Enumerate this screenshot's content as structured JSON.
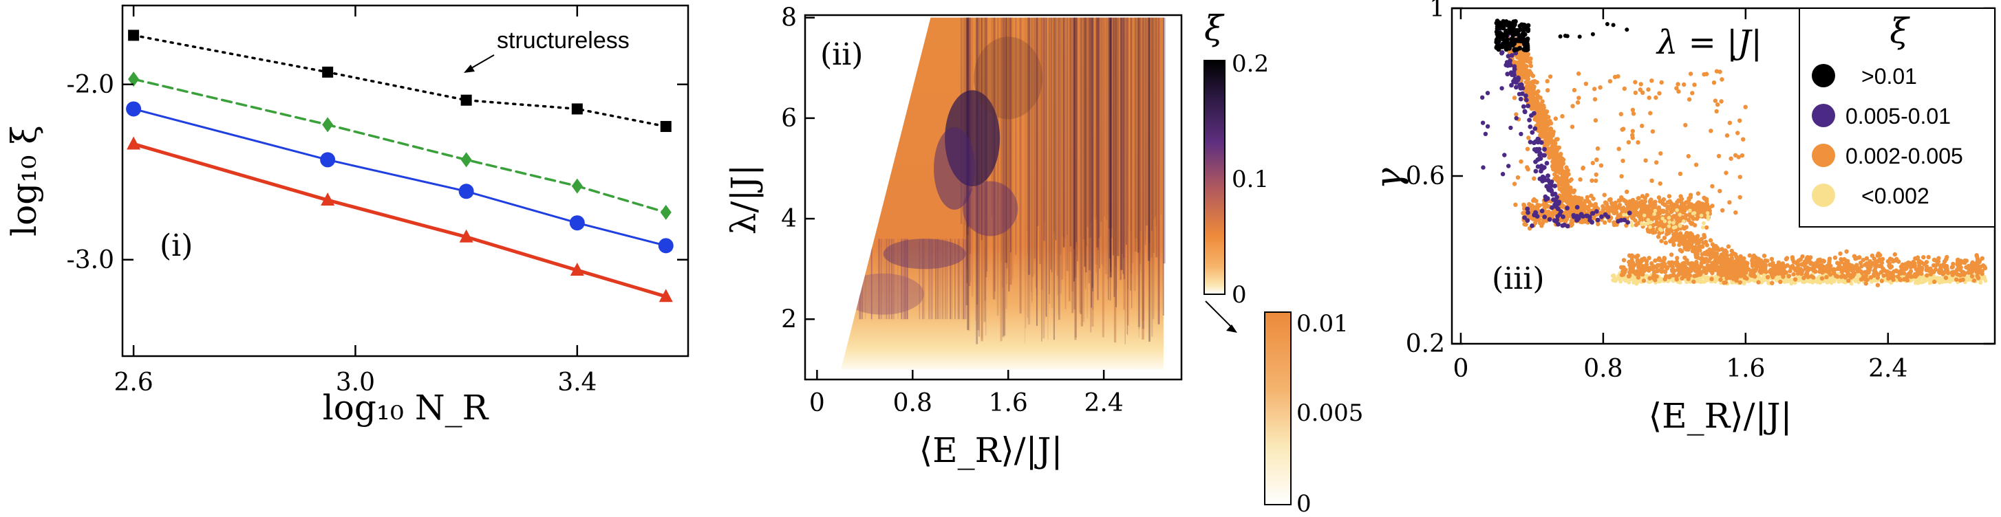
{
  "chart_data": [
    {
      "panel": "(i)",
      "type": "line",
      "xlabel": "log₁₀ N_R",
      "ylabel": "log₁₀ ξ",
      "xlim": [
        2.58,
        3.6
      ],
      "ylim": [
        -3.55,
        -1.55
      ],
      "xticks": [
        2.6,
        3.0,
        3.4
      ],
      "yticks": [
        -2.0,
        -3.0
      ],
      "xtick_labels": [
        "2.6",
        "3.0",
        "3.4"
      ],
      "ytick_labels": [
        "-2.0",
        "-3.0"
      ],
      "annotation": "structureless",
      "series": [
        {
          "color": "#000000",
          "style": "dotted",
          "marker": "square",
          "x": [
            2.6,
            2.95,
            3.2,
            3.4,
            3.56
          ],
          "y": [
            -1.72,
            -1.93,
            -2.09,
            -2.14,
            -2.24
          ]
        },
        {
          "color": "#3aa03a",
          "style": "dashed",
          "marker": "diamond",
          "x": [
            2.6,
            2.95,
            3.2,
            3.4,
            3.56
          ],
          "y": [
            -1.97,
            -2.23,
            -2.43,
            -2.58,
            -2.73
          ]
        },
        {
          "color": "#1f3fe0",
          "style": "solid",
          "marker": "circle",
          "x": [
            2.6,
            2.95,
            3.2,
            3.4,
            3.56
          ],
          "y": [
            -2.14,
            -2.43,
            -2.61,
            -2.79,
            -2.92
          ]
        },
        {
          "color": "#e23a1f",
          "style": "solid-thick",
          "marker": "triangle",
          "x": [
            2.6,
            2.95,
            3.2,
            3.4,
            3.56
          ],
          "y": [
            -2.34,
            -2.66,
            -2.87,
            -3.06,
            -3.21
          ]
        }
      ]
    },
    {
      "panel": "(ii)",
      "type": "heatmap",
      "xlabel": "⟨E_R⟩/|J|",
      "ylabel": "λ/|J|",
      "xlim": [
        -0.1,
        3.05
      ],
      "ylim": [
        0.8,
        8.05
      ],
      "xticks": [
        0,
        0.8,
        1.6,
        2.4
      ],
      "yticks": [
        2,
        4,
        6,
        8
      ],
      "xtick_labels": [
        "0",
        "0.8",
        "1.6",
        "2.4"
      ],
      "ytick_labels": [
        "2",
        "4",
        "6",
        "8"
      ],
      "colorbar": {
        "title": "ξ",
        "range": [
          0,
          0.2
        ],
        "ticks": [
          "0.2",
          "0.1",
          "0"
        ]
      },
      "colorbar_zoom": {
        "range": [
          0,
          0.01
        ],
        "ticks": [
          "0.01",
          "0.005",
          "0"
        ]
      }
    },
    {
      "panel": "(iii)",
      "type": "scatter",
      "title": "λ = |J|",
      "xlabel": "⟨E_R⟩/|J|",
      "ylabel": "γ",
      "xlim": [
        -0.05,
        3.0
      ],
      "ylim": [
        0.2,
        1.0
      ],
      "xticks": [
        0,
        0.8,
        1.6,
        2.4
      ],
      "yticks": [
        0.2,
        0.6,
        1
      ],
      "xtick_labels": [
        "0",
        "0.8",
        "1.6",
        "2.4"
      ],
      "ytick_labels": [
        "0.2",
        "0.6",
        "1"
      ],
      "legend_title": "ξ",
      "legend_position": "top-right",
      "legend": [
        {
          "label": ">0.01",
          "color": "#000000"
        },
        {
          "label": "0.005-0.01",
          "color": "#4b2a86"
        },
        {
          "label": "0.002-0.005",
          "color": "#f0923c"
        },
        {
          "label": "<0.002",
          "color": "#f9e08f"
        }
      ]
    }
  ]
}
